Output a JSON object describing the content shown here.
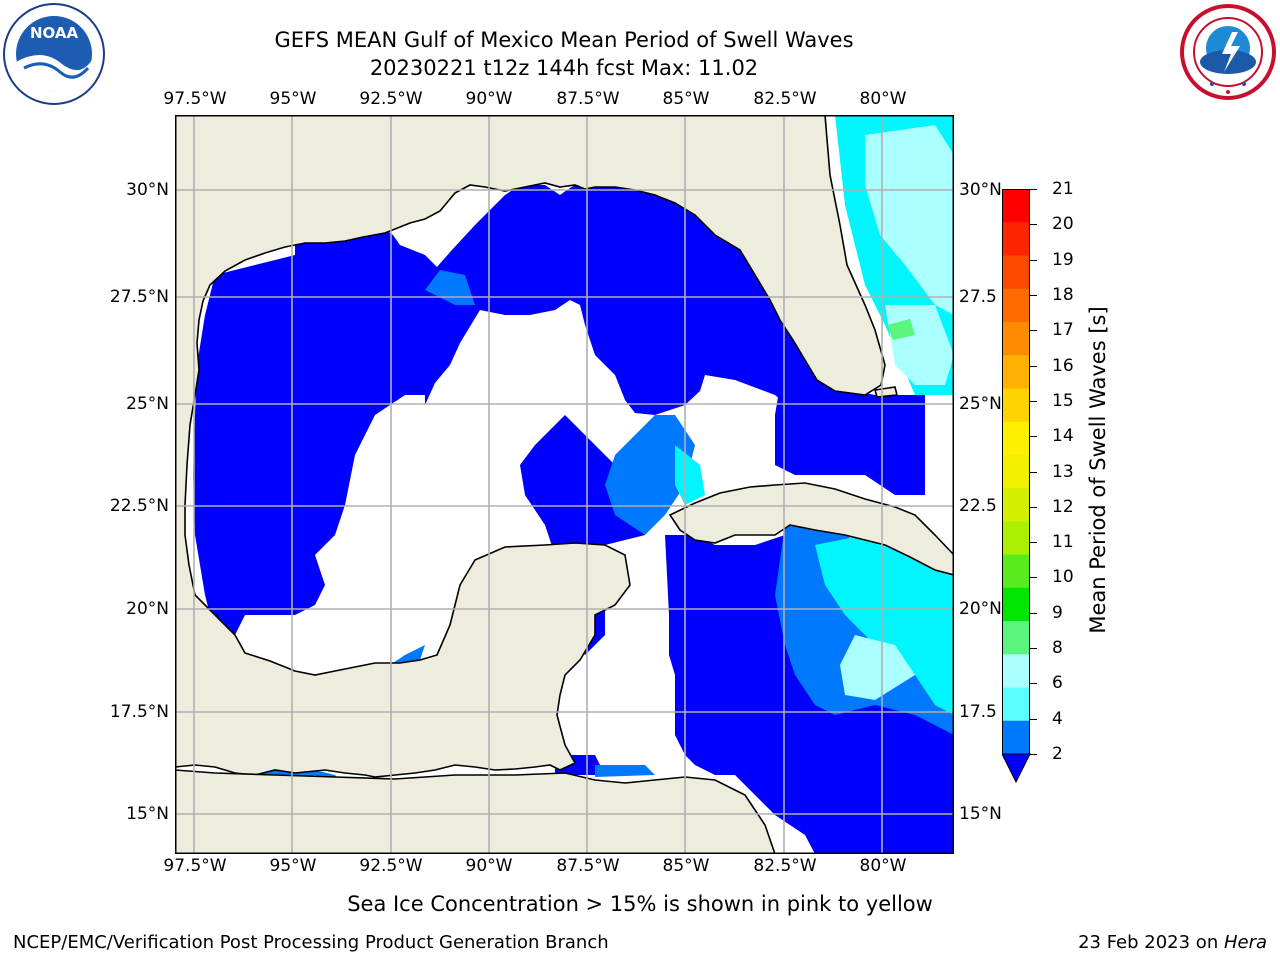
{
  "title": {
    "line1": "GEFS MEAN Gulf of Mexico Mean Period of Swell Waves",
    "line2": "20230221 t12z 144h fcst   Max: 11.02"
  },
  "logos": {
    "left": {
      "name": "NOAA",
      "ring_text": "NATIONAL OCEANIC AND ATMOSPHERIC ADMINISTRATION · U.S. DEPARTMENT OF COMMERCE"
    },
    "right": {
      "ring_text": "NATIONAL WEATHER SERVICE"
    }
  },
  "map": {
    "lon_ticks": [
      "97.5°W",
      "95°W",
      "92.5°W",
      "90°W",
      "87.5°W",
      "85°W",
      "82.5°W",
      "80°W"
    ],
    "lat_ticks_left": [
      "30°N",
      "27.5°N",
      "25°N",
      "22.5°N",
      "20°N",
      "17.5°N",
      "15°N"
    ],
    "lat_ticks_right": [
      "30°N",
      "27.5",
      "25°N",
      "22.5",
      "20°N",
      "17.5",
      "15°N"
    ],
    "colors": {
      "land": "#eeecdc",
      "ocean_missing": "#ffffff",
      "grid": "#b0b0b0",
      "coast": "#000000"
    }
  },
  "colorbar": {
    "label": "Mean Period of Swell Waves [s]",
    "ticks": [
      "21",
      "20",
      "19",
      "18",
      "17",
      "16",
      "15",
      "14",
      "13",
      "12",
      "11",
      "10",
      "9",
      "8",
      "6",
      "4",
      "2"
    ],
    "colors": [
      "#ff0000",
      "#ff2400",
      "#ff4800",
      "#ff6a00",
      "#ff8c00",
      "#ffb000",
      "#ffd200",
      "#fff000",
      "#f0f000",
      "#d2f000",
      "#aaf000",
      "#5aeb1e",
      "#00e600",
      "#5af57d",
      "#aaffff",
      "#5affff",
      "#00f5ff",
      "#0078ff"
    ],
    "extend_color": "#0000ff"
  },
  "note": "Sea Ice Concentration > 15% is shown in pink to yellow",
  "footer": {
    "left": "NCEP/EMC/Verification Post Processing Product Generation Branch",
    "right_prefix": "23 Feb 2023 on ",
    "right_host": "Hera"
  }
}
